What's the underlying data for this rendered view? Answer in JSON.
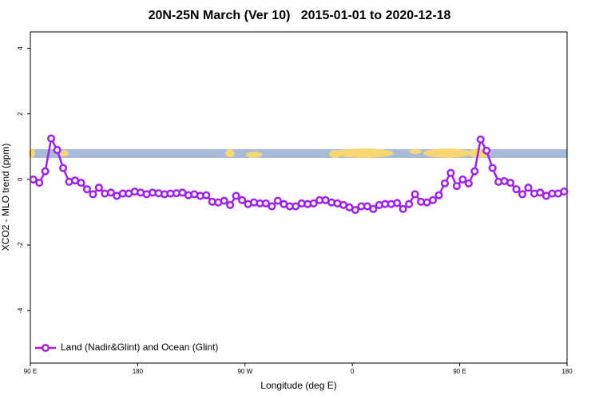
{
  "chart_data": {
    "type": "line",
    "title": "20N-25N March (Ver 10)   2015-01-01 to 2020-12-18",
    "xlabel": "Longitude (deg E)",
    "ylabel": "XCO2 - MLO trend (ppm)",
    "xlim": [
      90,
      540
    ],
    "ylim": [
      -5.6,
      4.5
    ],
    "xticks": [
      {
        "value": 90,
        "label": "90 E"
      },
      {
        "value": 180,
        "label": "180"
      },
      {
        "value": 270,
        "label": "90 W"
      },
      {
        "value": 360,
        "label": "0"
      },
      {
        "value": 450,
        "label": "90 E"
      },
      {
        "value": 540,
        "label": "180"
      }
    ],
    "yticks": [
      -4,
      -2,
      0,
      2,
      4
    ],
    "legend": "bottomleft",
    "x": [
      92.5,
      97.5,
      102.5,
      107.5,
      112.5,
      117.5,
      122.5,
      127.5,
      132.5,
      137.5,
      142.5,
      147.5,
      152.5,
      157.5,
      162.5,
      167.5,
      172.5,
      177.5,
      182.5,
      187.5,
      192.5,
      197.5,
      202.5,
      207.5,
      212.5,
      217.5,
      222.5,
      227.5,
      232.5,
      237.5,
      242.5,
      247.5,
      252.5,
      257.5,
      262.5,
      267.5,
      272.5,
      277.5,
      282.5,
      287.5,
      292.5,
      297.5,
      302.5,
      307.5,
      312.5,
      317.5,
      322.5,
      327.5,
      332.5,
      337.5,
      342.5,
      347.5,
      352.5,
      357.5,
      362.5,
      367.5,
      372.5,
      377.5,
      382.5,
      387.5,
      392.5,
      397.5,
      402.5,
      407.5,
      412.5,
      417.5,
      422.5,
      427.5,
      432.5,
      437.5,
      442.5,
      447.5,
      452.5,
      457.5,
      462.5,
      467.5,
      472.5,
      477.5,
      482.5,
      487.5,
      492.5,
      497.5,
      502.5,
      507.5,
      512.5,
      517.5,
      522.5,
      527.5,
      532.5,
      537.5
    ],
    "series": [
      {
        "name": "Land (Nadir&Glint) and Ocean (Glint)",
        "color": "#a020f0",
        "values": [
          0.0,
          -0.1,
          0.25,
          1.25,
          0.9,
          0.35,
          -0.07,
          -0.03,
          -0.1,
          -0.3,
          -0.45,
          -0.25,
          -0.43,
          -0.4,
          -0.5,
          -0.43,
          -0.43,
          -0.37,
          -0.4,
          -0.45,
          -0.4,
          -0.42,
          -0.45,
          -0.43,
          -0.42,
          -0.4,
          -0.48,
          -0.45,
          -0.5,
          -0.48,
          -0.68,
          -0.7,
          -0.65,
          -0.78,
          -0.5,
          -0.63,
          -0.75,
          -0.7,
          -0.73,
          -0.73,
          -0.82,
          -0.65,
          -0.75,
          -0.82,
          -0.82,
          -0.73,
          -0.75,
          -0.73,
          -0.63,
          -0.63,
          -0.7,
          -0.73,
          -0.78,
          -0.85,
          -0.93,
          -0.82,
          -0.82,
          -0.9,
          -0.78,
          -0.75,
          -0.75,
          -0.72,
          -0.9,
          -0.75,
          -0.45,
          -0.68,
          -0.7,
          -0.63,
          -0.48,
          -0.12,
          0.2,
          -0.2,
          0.0,
          -0.12,
          0.25,
          1.22,
          0.88,
          0.35,
          -0.07,
          -0.05,
          -0.1,
          -0.3,
          -0.45,
          -0.25,
          -0.43,
          -0.4,
          -0.5,
          -0.43,
          -0.43,
          -0.37
        ]
      }
    ]
  }
}
